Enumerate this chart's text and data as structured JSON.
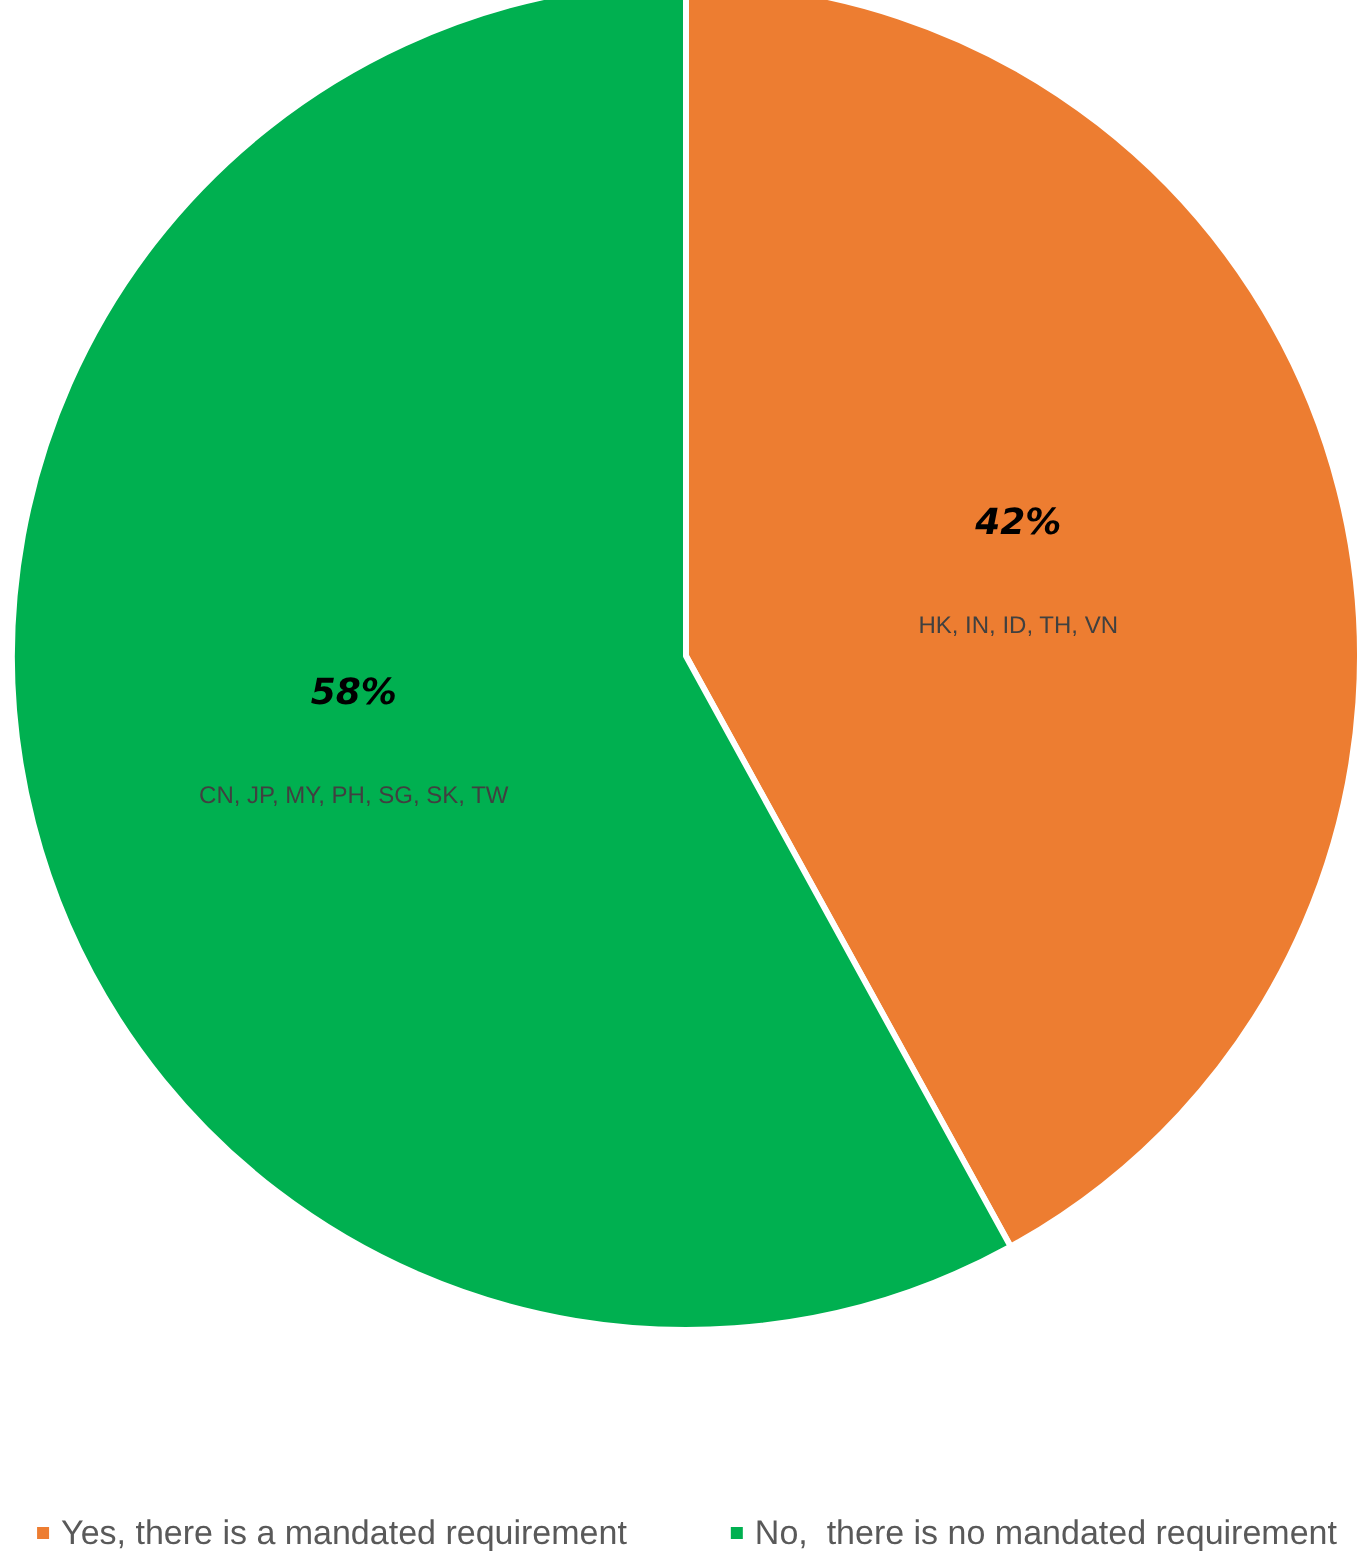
{
  "chart_data": {
    "type": "pie",
    "categories": [
      "Yes, there is a mandated requirement",
      "No,  there is no mandated requirement"
    ],
    "values": [
      42,
      58
    ],
    "colors": [
      "#ed7d31",
      "#00b050"
    ],
    "value_labels": [
      "42%",
      "58%"
    ],
    "annotations": [
      "HK, IN, ID, TH, VN",
      "CN, JP, MY, PH, SG, SK, TW"
    ],
    "legend": "bottom"
  }
}
